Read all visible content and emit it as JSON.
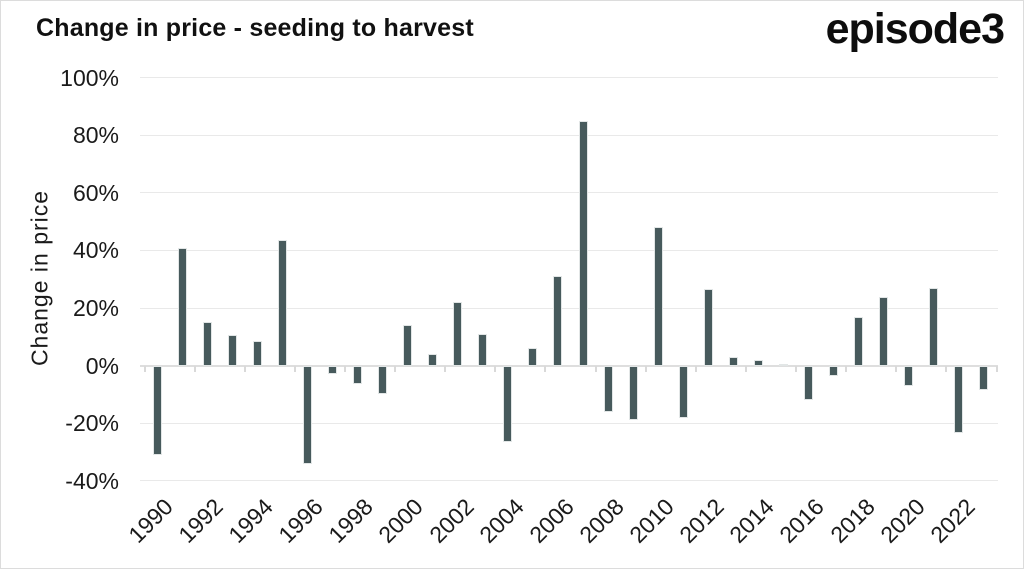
{
  "header": {
    "title": "Change in price - seeding to harvest",
    "logo_text": "episode3"
  },
  "chart_data": {
    "type": "bar",
    "title": "Change in price - seeding to harvest",
    "xlabel": "",
    "ylabel": "Change in price",
    "categories": [
      1990,
      1991,
      1992,
      1993,
      1994,
      1995,
      1996,
      1997,
      1998,
      1999,
      2000,
      2001,
      2002,
      2003,
      2004,
      2005,
      2006,
      2007,
      2008,
      2009,
      2010,
      2011,
      2012,
      2013,
      2014,
      2015,
      2016,
      2017,
      2018,
      2019,
      2020,
      2021,
      2022,
      2023
    ],
    "values": [
      -31,
      41,
      15,
      10.5,
      8.5,
      43.5,
      -34,
      -3,
      -6.5,
      -10,
      14,
      4,
      22,
      11,
      -26.5,
      6,
      31,
      85,
      -16,
      -19,
      48,
      -18,
      26.5,
      3,
      2,
      0.5,
      -12,
      -3.5,
      17,
      24,
      -7,
      27,
      -23.5,
      -8.5
    ],
    "value_unit": "%",
    "ylim": [
      -40,
      100
    ],
    "yticks": [
      100,
      80,
      60,
      40,
      20,
      0,
      -20,
      -40
    ],
    "ytick_labels": [
      "100%",
      "80%",
      "60%",
      "40%",
      "20%",
      "0%",
      "-20%",
      "-40%"
    ],
    "xtick_labels": [
      "1990",
      "1992",
      "1994",
      "1996",
      "1998",
      "2000",
      "2002",
      "2004",
      "2006",
      "2008",
      "2010",
      "2012",
      "2014",
      "2016",
      "2018",
      "2020",
      "2022"
    ],
    "bar_color": "#475a5c",
    "grid": true,
    "legend_position": "none",
    "background": "#ffffff"
  }
}
